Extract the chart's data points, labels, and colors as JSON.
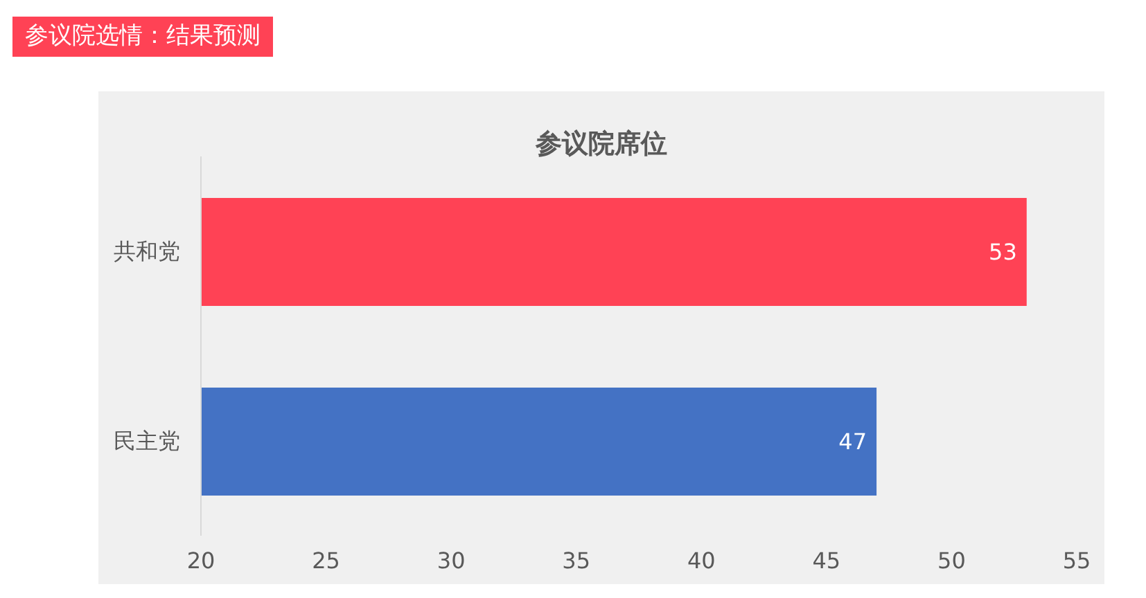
{
  "chart_data": {
    "type": "bar",
    "orientation": "horizontal",
    "title": "参议院选情：结果预测",
    "subtitle": "参议院席位",
    "categories": [
      "共和党",
      "民主党"
    ],
    "values": [
      53,
      47
    ],
    "colors": [
      "#ff4255",
      "#4472c4"
    ],
    "xlim": [
      20,
      55
    ],
    "xticks": [
      20,
      25,
      30,
      35,
      40,
      45,
      50,
      55
    ],
    "data_labels": true
  }
}
